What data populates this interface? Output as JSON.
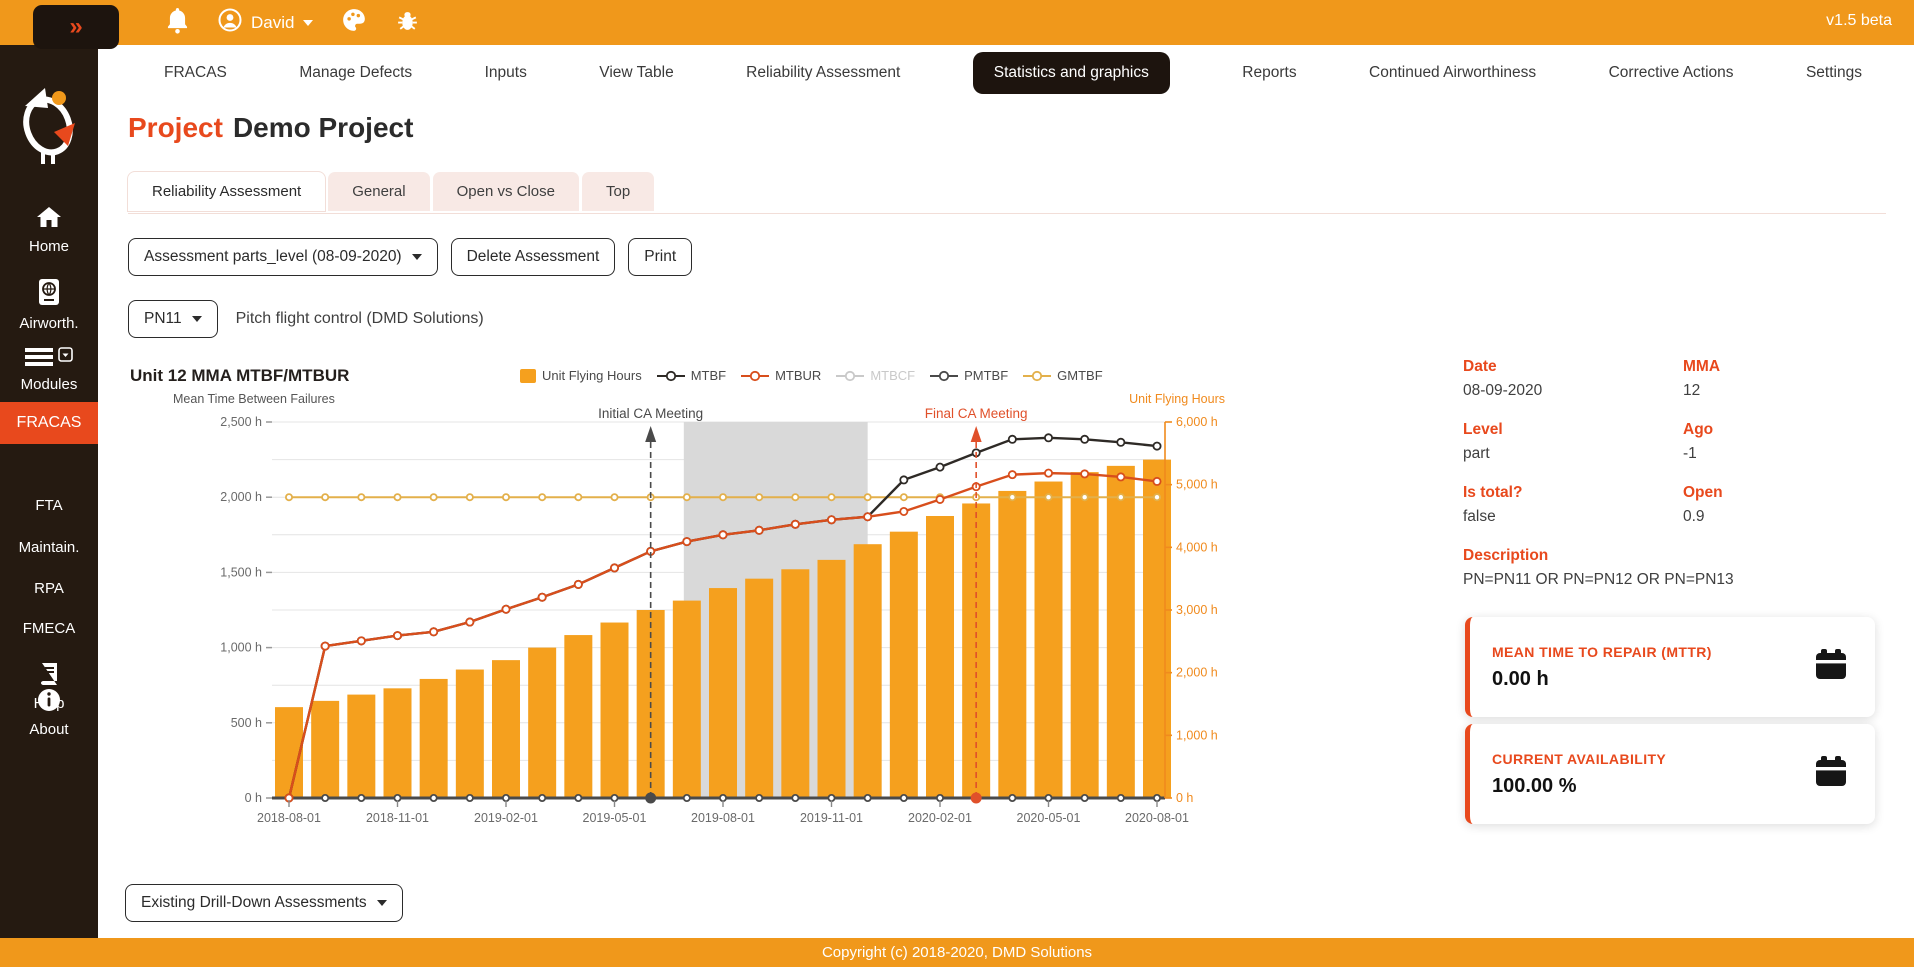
{
  "topbar": {
    "collapse_label": "»",
    "user": "David",
    "version": "v1.5 beta"
  },
  "nav": {
    "items": [
      "FRACAS",
      "Manage Defects",
      "Inputs",
      "View Table",
      "Reliability Assessment",
      "Statistics and graphics",
      "Reports",
      "Continued Airworthiness",
      "Corrective Actions",
      "Settings"
    ],
    "active": "Statistics and graphics"
  },
  "sidebar": {
    "home": "Home",
    "airworth": "Airworth.",
    "modules": "Modules",
    "fracas": "FRACAS",
    "fta": "FTA",
    "maintain": "Maintain.",
    "rpa": "RPA",
    "fmeca": "FMECA",
    "help": "Help",
    "about": "About"
  },
  "page": {
    "title_prefix": "Project",
    "title": "Demo Project"
  },
  "tabs": {
    "items": [
      "Reliability Assessment",
      "General",
      "Open vs Close",
      "Top"
    ],
    "active_index": 0
  },
  "controls": {
    "assessment_dropdown": "Assessment parts_level (08-09-2020)",
    "delete_button": "Delete Assessment",
    "print_button": "Print",
    "pn_dropdown": "PN11",
    "pn_description": "Pitch flight control (DMD Solutions)",
    "drilldown_dropdown": "Existing Drill-Down Assessments"
  },
  "details": {
    "date_label": "Date",
    "date": "08-09-2020",
    "mma_label": "MMA",
    "mma": "12",
    "level_label": "Level",
    "level": "part",
    "ago_label": "Ago",
    "ago": "-1",
    "is_total_label": "Is total?",
    "is_total": "false",
    "open_label": "Open",
    "open": "0.9",
    "description_label": "Description",
    "description": "PN=PN11 OR PN=PN12 OR PN=PN13"
  },
  "cards": {
    "mttr": {
      "title": "MEAN TIME TO REPAIR (MTTR)",
      "value": "0.00 h"
    },
    "availability": {
      "title": "CURRENT AVAILABILITY",
      "value": "100.00 %"
    }
  },
  "footer": {
    "copyright": "Copyright (c) 2018-2020, DMD Solutions"
  },
  "chart_data": {
    "type": "bar+line",
    "title": "Unit 12 MMA MTBF/MTBUR",
    "left_axis": {
      "label": "Mean Time Between Failures",
      "min": 0,
      "max": 2500,
      "tick_step": 500,
      "grid_step": 250,
      "unit": "h"
    },
    "right_axis": {
      "label": "Unit Flying Hours",
      "min": 0,
      "max": 6000,
      "tick_step": 1000,
      "unit": "h"
    },
    "x": [
      "2018-08-01",
      "2018-09-01",
      "2018-10-01",
      "2018-11-01",
      "2018-12-01",
      "2019-01-01",
      "2019-02-01",
      "2019-03-01",
      "2019-04-01",
      "2019-05-01",
      "2019-06-01",
      "2019-07-01",
      "2019-08-01",
      "2019-09-01",
      "2019-10-01",
      "2019-11-01",
      "2019-12-01",
      "2020-01-01",
      "2020-02-01",
      "2020-03-01",
      "2020-04-01",
      "2020-05-01",
      "2020-06-01",
      "2020-07-01",
      "2020-08-01"
    ],
    "x_tick_every": 3,
    "bars": {
      "name": "Unit Flying Hours",
      "axis": "right",
      "color": "#F5A01E",
      "values": [
        1450,
        1550,
        1650,
        1750,
        1900,
        2050,
        2200,
        2400,
        2600,
        2800,
        3000,
        3150,
        3350,
        3500,
        3650,
        3800,
        4050,
        4250,
        4500,
        4700,
        4900,
        5050,
        5200,
        5300,
        5400
      ]
    },
    "series": [
      {
        "name": "MTBF",
        "axis": "left",
        "color": "#2E2A26",
        "values": [
          0,
          1010,
          1045,
          1080,
          1105,
          1170,
          1255,
          1335,
          1420,
          1530,
          1640,
          1705,
          1750,
          1780,
          1820,
          1850,
          1870,
          2115,
          2200,
          2295,
          2385,
          2395,
          2385,
          2365,
          2340
        ]
      },
      {
        "name": "MTBUR",
        "axis": "left",
        "color": "#D84E1C",
        "values": [
          0,
          1010,
          1045,
          1080,
          1105,
          1170,
          1255,
          1335,
          1420,
          1530,
          1640,
          1705,
          1750,
          1780,
          1820,
          1850,
          1870,
          1905,
          1985,
          2070,
          2150,
          2160,
          2155,
          2135,
          2105
        ]
      },
      {
        "name": "MTBCF",
        "axis": "left",
        "color": "#C9C9C9",
        "hidden": true,
        "values": null
      },
      {
        "name": "PMTBF",
        "axis": "left",
        "color": "#4A4A4A",
        "values": [
          0,
          0,
          0,
          0,
          0,
          0,
          0,
          0,
          0,
          0,
          0,
          0,
          0,
          0,
          0,
          0,
          0,
          0,
          0,
          0,
          0,
          0,
          0,
          0,
          0
        ]
      },
      {
        "name": "GMTBF",
        "axis": "left",
        "color": "#E3B04B",
        "values": [
          2000,
          2000,
          2000,
          2000,
          2000,
          2000,
          2000,
          2000,
          2000,
          2000,
          2000,
          2000,
          2000,
          2000,
          2000,
          2000,
          2000,
          2000,
          2000,
          2000,
          2000,
          2000,
          2000,
          2000,
          2000
        ]
      }
    ],
    "annotations": {
      "initial": {
        "label": "Initial CA Meeting",
        "date": "2019-06-01",
        "color": "#4A4A4A"
      },
      "final": {
        "label": "Final CA Meeting",
        "date": "2020-03-01",
        "color": "#E0502A"
      },
      "region": {
        "from": "2019-07-01",
        "to": "2019-12-01",
        "color": "#D9D9D9"
      }
    }
  }
}
